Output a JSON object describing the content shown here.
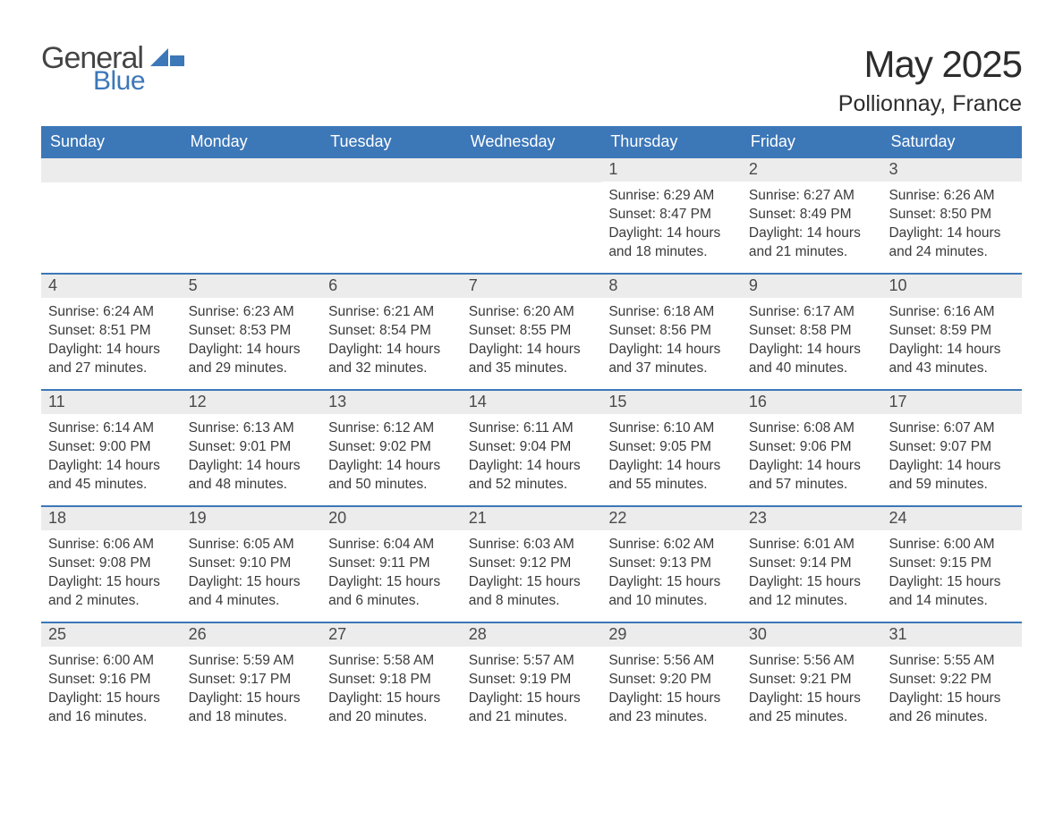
{
  "brand": {
    "general": "General",
    "blue": "Blue",
    "accent_color": "#3c77b8"
  },
  "title": {
    "month": "May 2025",
    "location": "Pollionnay, France"
  },
  "header": {
    "bg_color": "#3c77b8",
    "text_color": "#ffffff",
    "days": [
      "Sunday",
      "Monday",
      "Tuesday",
      "Wednesday",
      "Thursday",
      "Friday",
      "Saturday"
    ]
  },
  "cell": {
    "daynum_bg": "#ececec",
    "daynum_color": "#4a4a4a",
    "body_color": "#3a3a3a",
    "week_border_color": "#3c77b8"
  },
  "labels": {
    "sunrise": "Sunrise:",
    "sunset": "Sunset:",
    "daylight": "Daylight:"
  },
  "weeks": [
    [
      null,
      null,
      null,
      null,
      {
        "n": "1",
        "sunrise": "6:29 AM",
        "sunset": "8:47 PM",
        "daylight": "14 hours and 18 minutes."
      },
      {
        "n": "2",
        "sunrise": "6:27 AM",
        "sunset": "8:49 PM",
        "daylight": "14 hours and 21 minutes."
      },
      {
        "n": "3",
        "sunrise": "6:26 AM",
        "sunset": "8:50 PM",
        "daylight": "14 hours and 24 minutes."
      }
    ],
    [
      {
        "n": "4",
        "sunrise": "6:24 AM",
        "sunset": "8:51 PM",
        "daylight": "14 hours and 27 minutes."
      },
      {
        "n": "5",
        "sunrise": "6:23 AM",
        "sunset": "8:53 PM",
        "daylight": "14 hours and 29 minutes."
      },
      {
        "n": "6",
        "sunrise": "6:21 AM",
        "sunset": "8:54 PM",
        "daylight": "14 hours and 32 minutes."
      },
      {
        "n": "7",
        "sunrise": "6:20 AM",
        "sunset": "8:55 PM",
        "daylight": "14 hours and 35 minutes."
      },
      {
        "n": "8",
        "sunrise": "6:18 AM",
        "sunset": "8:56 PM",
        "daylight": "14 hours and 37 minutes."
      },
      {
        "n": "9",
        "sunrise": "6:17 AM",
        "sunset": "8:58 PM",
        "daylight": "14 hours and 40 minutes."
      },
      {
        "n": "10",
        "sunrise": "6:16 AM",
        "sunset": "8:59 PM",
        "daylight": "14 hours and 43 minutes."
      }
    ],
    [
      {
        "n": "11",
        "sunrise": "6:14 AM",
        "sunset": "9:00 PM",
        "daylight": "14 hours and 45 minutes."
      },
      {
        "n": "12",
        "sunrise": "6:13 AM",
        "sunset": "9:01 PM",
        "daylight": "14 hours and 48 minutes."
      },
      {
        "n": "13",
        "sunrise": "6:12 AM",
        "sunset": "9:02 PM",
        "daylight": "14 hours and 50 minutes."
      },
      {
        "n": "14",
        "sunrise": "6:11 AM",
        "sunset": "9:04 PM",
        "daylight": "14 hours and 52 minutes."
      },
      {
        "n": "15",
        "sunrise": "6:10 AM",
        "sunset": "9:05 PM",
        "daylight": "14 hours and 55 minutes."
      },
      {
        "n": "16",
        "sunrise": "6:08 AM",
        "sunset": "9:06 PM",
        "daylight": "14 hours and 57 minutes."
      },
      {
        "n": "17",
        "sunrise": "6:07 AM",
        "sunset": "9:07 PM",
        "daylight": "14 hours and 59 minutes."
      }
    ],
    [
      {
        "n": "18",
        "sunrise": "6:06 AM",
        "sunset": "9:08 PM",
        "daylight": "15 hours and 2 minutes."
      },
      {
        "n": "19",
        "sunrise": "6:05 AM",
        "sunset": "9:10 PM",
        "daylight": "15 hours and 4 minutes."
      },
      {
        "n": "20",
        "sunrise": "6:04 AM",
        "sunset": "9:11 PM",
        "daylight": "15 hours and 6 minutes."
      },
      {
        "n": "21",
        "sunrise": "6:03 AM",
        "sunset": "9:12 PM",
        "daylight": "15 hours and 8 minutes."
      },
      {
        "n": "22",
        "sunrise": "6:02 AM",
        "sunset": "9:13 PM",
        "daylight": "15 hours and 10 minutes."
      },
      {
        "n": "23",
        "sunrise": "6:01 AM",
        "sunset": "9:14 PM",
        "daylight": "15 hours and 12 minutes."
      },
      {
        "n": "24",
        "sunrise": "6:00 AM",
        "sunset": "9:15 PM",
        "daylight": "15 hours and 14 minutes."
      }
    ],
    [
      {
        "n": "25",
        "sunrise": "6:00 AM",
        "sunset": "9:16 PM",
        "daylight": "15 hours and 16 minutes."
      },
      {
        "n": "26",
        "sunrise": "5:59 AM",
        "sunset": "9:17 PM",
        "daylight": "15 hours and 18 minutes."
      },
      {
        "n": "27",
        "sunrise": "5:58 AM",
        "sunset": "9:18 PM",
        "daylight": "15 hours and 20 minutes."
      },
      {
        "n": "28",
        "sunrise": "5:57 AM",
        "sunset": "9:19 PM",
        "daylight": "15 hours and 21 minutes."
      },
      {
        "n": "29",
        "sunrise": "5:56 AM",
        "sunset": "9:20 PM",
        "daylight": "15 hours and 23 minutes."
      },
      {
        "n": "30",
        "sunrise": "5:56 AM",
        "sunset": "9:21 PM",
        "daylight": "15 hours and 25 minutes."
      },
      {
        "n": "31",
        "sunrise": "5:55 AM",
        "sunset": "9:22 PM",
        "daylight": "15 hours and 26 minutes."
      }
    ]
  ]
}
